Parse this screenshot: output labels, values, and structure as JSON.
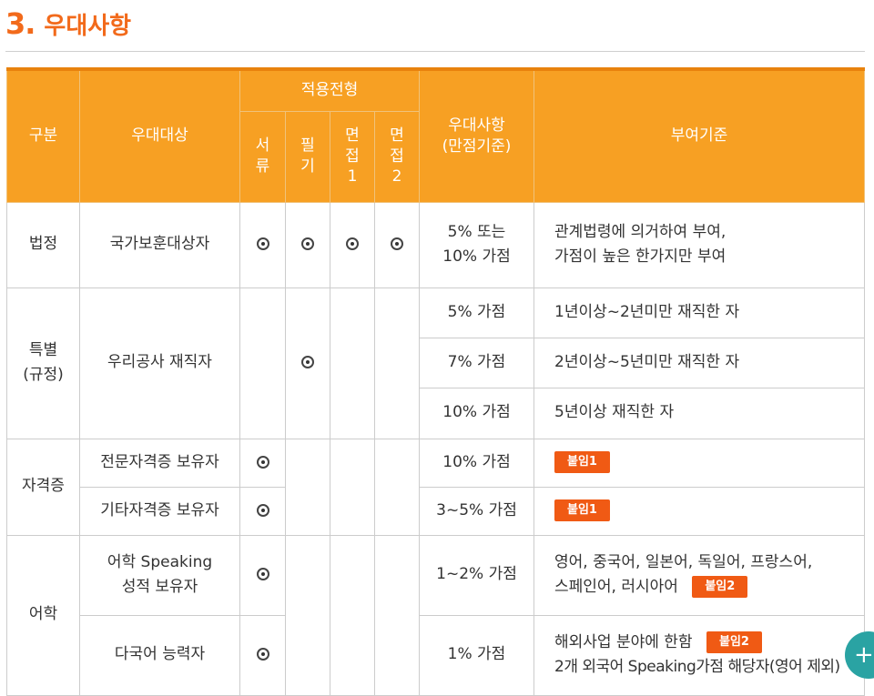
{
  "section": {
    "number": "3.",
    "title": "우대사항"
  },
  "table": {
    "headers": {
      "category": "구분",
      "target": "우대대상",
      "apply_group": "적용전형",
      "stages": [
        [
          "서",
          "류"
        ],
        [
          "필",
          "기"
        ],
        [
          "면",
          "접",
          "1"
        ],
        [
          "면",
          "접",
          "2"
        ]
      ],
      "benefit": [
        "우대사항",
        "(만점기준)"
      ],
      "criteria": "부여기준"
    },
    "rows": {
      "legal": {
        "category": "법정",
        "target": "국가보훈대상자",
        "benefit": [
          "5% 또는",
          "10% 가점"
        ],
        "criteria": [
          "관계법령에 의거하여 부여,",
          "가점이 높은 한가지만 부여"
        ]
      },
      "special": {
        "category": [
          "특별",
          "(규정)"
        ],
        "target": "우리공사 재직자",
        "items": [
          {
            "benefit": "5% 가점",
            "criteria": "1년이상~2년미만 재직한 자"
          },
          {
            "benefit": "7% 가점",
            "criteria": "2년이상~5년미만 재직한 자"
          },
          {
            "benefit": "10% 가점",
            "criteria": "5년이상 재직한 자"
          }
        ]
      },
      "cert": {
        "category": "자격증",
        "items": [
          {
            "target": "전문자격증 보유자",
            "benefit": "10% 가점",
            "badge": "붙임1"
          },
          {
            "target": "기타자격증 보유자",
            "benefit": "3~5% 가점",
            "badge": "붙임1"
          }
        ]
      },
      "lang": {
        "category": "어학",
        "items": [
          {
            "target": [
              "어학 Speaking",
              "성적 보유자"
            ],
            "benefit": "1~2% 가점",
            "criteria": [
              "영어, 중국어, 일본어, 독일어, 프랑스어,",
              "스페인어, 러시아어"
            ],
            "badge": "붙임2"
          },
          {
            "target": "다국어 능력자",
            "benefit": "1% 가점",
            "criteria": [
              "해외사업 분야에 한함",
              "2개 외국어 Speaking가점 해당자(영어 제외)"
            ],
            "badge": "붙임2"
          }
        ]
      }
    }
  },
  "fab": {
    "icon": "plus-icon",
    "label": "+"
  }
}
